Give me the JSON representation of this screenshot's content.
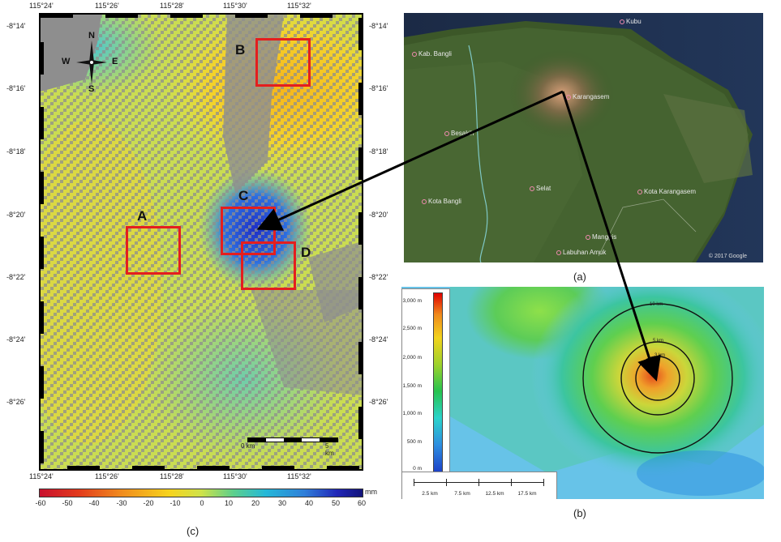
{
  "panel_c": {
    "caption": "(c)",
    "top_lon_ticks": [
      "115°24'",
      "115°26'",
      "115°28'",
      "115°30'",
      "115°32'"
    ],
    "bottom_lon_ticks": [
      "115°24'",
      "115°26'",
      "115°28'",
      "115°30'",
      "115°32'"
    ],
    "left_lat_ticks": [
      "-8°14'",
      "-8°16'",
      "-8°18'",
      "-8°20'",
      "-8°22'",
      "-8°24'",
      "-8°26'"
    ],
    "right_lat_ticks": [
      "-8°14'",
      "-8°16'",
      "-8°18'",
      "-8°20'",
      "-8°22'",
      "-8°24'",
      "-8°26'"
    ],
    "compass": {
      "n": "N",
      "s": "S",
      "e": "E",
      "w": "W"
    },
    "scale_labels": [
      "0 km",
      "5 km"
    ],
    "boxes": [
      "A",
      "B",
      "C",
      "D"
    ],
    "colorbar": {
      "unit": "mm",
      "ticks": [
        "-60",
        "-50",
        "-40",
        "-30",
        "-20",
        "-10",
        "0",
        "10",
        "20",
        "30",
        "40",
        "50",
        "60"
      ],
      "min": -60,
      "max": 60,
      "colors": [
        "#c8102e",
        "#f08a1e",
        "#f7d31d",
        "#5ccf8c",
        "#2f7fd9",
        "#12137a"
      ]
    }
  },
  "panel_a": {
    "caption": "(a)",
    "places": [
      "Kubu",
      "Kab. Bangli",
      "Karangasem",
      "Besakih",
      "Selat",
      "Kota Bangli",
      "Kota Karangasem",
      "Manggis",
      "Labuhan Amuk"
    ],
    "attribution": "© 2017 Google"
  },
  "panel_b": {
    "caption": "(b)",
    "elevation_labels": [
      "3,000 m",
      "2,500 m",
      "2,000 m",
      "1,500 m",
      "1,000 m",
      "500 m",
      "0 m"
    ],
    "scale_labels": [
      "2.5 km",
      "7.5 km",
      "12.5 km",
      "17.5 km"
    ],
    "ring_labels": [
      "10 km",
      "5 km",
      "3 km"
    ]
  }
}
